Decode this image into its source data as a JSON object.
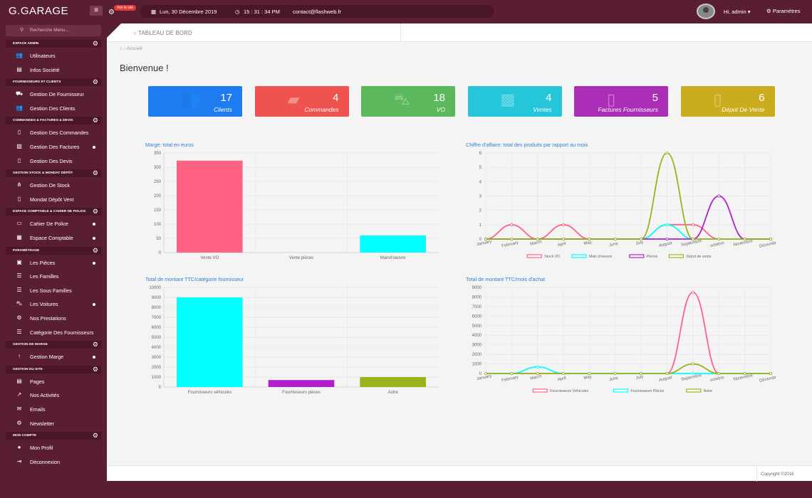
{
  "topbar": {
    "brand": "G.GARAGE",
    "menu_icon": "menu-icon",
    "site_badge": "Voir le site",
    "date": "Lun, 30 Décembre 2019",
    "time": "15 : 31 : 34 PM",
    "email": "contact@flashweb.fr",
    "user_greeting": "Hi, admin",
    "settings_label": "Paramètres"
  },
  "sidebar": {
    "search_placeholder": "Recherche Menu...",
    "sections": [
      {
        "title": "ESPACE ADMIN",
        "items": [
          {
            "label": "Utilisateurs",
            "icon": "users-icon"
          },
          {
            "label": "Infos Société",
            "icon": "building-icon"
          }
        ]
      },
      {
        "title": "FOURNISSEURS ET CLIENTS",
        "items": [
          {
            "label": "Gestion De Fournisseur",
            "icon": "truck-icon"
          },
          {
            "label": "Gestion Des Clients",
            "icon": "users-icon"
          }
        ]
      },
      {
        "title": "COMMANDES & FACTURES & DEVIS",
        "items": [
          {
            "label": "Gestion Des Commandes",
            "icon": "document-icon"
          },
          {
            "label": "Gestion Des Factures",
            "icon": "invoice-icon"
          },
          {
            "label": "Gestion Des Devis",
            "icon": "document-icon"
          }
        ]
      },
      {
        "title": "GESTION STOCK & MONDAT DÉPÔT",
        "items": [
          {
            "label": "Gestion De Stock",
            "icon": "share-icon"
          },
          {
            "label": "Mondat Dépôt Vent",
            "icon": "document-icon"
          }
        ]
      },
      {
        "title": "ESPACE COMPTABLE & CAHIER DE POLICE",
        "items": [
          {
            "label": "Cahier De Police",
            "icon": "book-icon"
          },
          {
            "label": "Espace Comptable",
            "icon": "calculator-icon"
          }
        ]
      },
      {
        "title": "PARAMÉTRAGE",
        "items": [
          {
            "label": "Les Pièces",
            "icon": "briefcase-icon"
          },
          {
            "label": "Les Familles",
            "icon": "list-icon"
          },
          {
            "label": "Les Sous Familles",
            "icon": "list-icon"
          },
          {
            "label": "Les Voitures",
            "icon": "car-icon"
          },
          {
            "label": "Nos Prestations",
            "icon": "gears-icon"
          },
          {
            "label": "Catégorie Des Fournisseurs",
            "icon": "list-icon"
          }
        ]
      },
      {
        "title": "GESTION DE MARGE",
        "items": [
          {
            "label": "Gestion Marge",
            "icon": "arrow-up-icon"
          }
        ]
      },
      {
        "title": "GESTION DU SITE",
        "items": [
          {
            "label": "Pages",
            "icon": "pages-icon"
          },
          {
            "label": "Nos Activités",
            "icon": "chart-line-icon"
          },
          {
            "label": "Emails",
            "icon": "mail-icon"
          },
          {
            "label": "Newsletter",
            "icon": "gear-icon"
          }
        ]
      },
      {
        "title": "MON COMPTE",
        "items": [
          {
            "label": "Mon Profil",
            "icon": "user-icon"
          },
          {
            "label": "Déconnexion",
            "icon": "logout-icon"
          }
        ]
      }
    ]
  },
  "header": {
    "title": "TABLEAU DE BORD"
  },
  "breadcrumb": {
    "current": "Accueil"
  },
  "welcome": "Bienvenue !",
  "stats": [
    {
      "value": "17",
      "label": "Clients",
      "color": "#1e7cf0",
      "icon": "users-icon"
    },
    {
      "value": "4",
      "label": "Commandes",
      "color": "#ef5350",
      "icon": "ticket-icon"
    },
    {
      "value": "18",
      "label": "VO",
      "color": "#5cb85c",
      "icon": "car-icon"
    },
    {
      "value": "4",
      "label": "Ventes",
      "color": "#26c6da",
      "icon": "cubes-icon"
    },
    {
      "value": "5",
      "label": "Factures Fournisseurs",
      "color": "#ab2fb6",
      "icon": "file-icon"
    },
    {
      "value": "6",
      "label": "Dépot De Vente",
      "color": "#c9ad1f",
      "icon": "file-icon"
    }
  ],
  "chart_data": [
    {
      "type": "bar",
      "title": "Marge: total en euros",
      "categories": [
        "Vente VO",
        "Vente pièces",
        "Maind'oeuvre"
      ],
      "values": [
        323,
        0,
        60
      ],
      "colors": [
        "#ff6384",
        "#ff6384",
        "#00ffff"
      ],
      "ylim": [
        0,
        350
      ],
      "yticks": [
        0,
        50,
        100,
        150,
        200,
        250,
        300,
        350
      ]
    },
    {
      "type": "line",
      "title": "Chiffre d'affaire: total des produits par rapport au mois",
      "categories": [
        "January",
        "February",
        "March",
        "April",
        "May",
        "June",
        "July",
        "August",
        "Septembre",
        "octobre",
        "Novembre",
        "Décembre"
      ],
      "ylim": [
        0,
        6
      ],
      "yticks": [
        0,
        1,
        2,
        3,
        4,
        5,
        6
      ],
      "series": [
        {
          "name": "Stock VO",
          "color": "#ff6384",
          "values": [
            0,
            1,
            0,
            1,
            0,
            0,
            0,
            1,
            1,
            0,
            0,
            0
          ]
        },
        {
          "name": "Main d'oeuvre",
          "color": "#00ffff",
          "values": [
            0,
            0,
            0,
            0,
            0,
            0,
            0,
            1,
            0,
            0,
            0,
            0
          ]
        },
        {
          "name": "Pièces",
          "color": "#b21fcc",
          "values": [
            0,
            0,
            0,
            0,
            0,
            0,
            0,
            0,
            0,
            3,
            0,
            0
          ]
        },
        {
          "name": "Dépot de vente",
          "color": "#99b31a",
          "values": [
            0,
            0,
            0,
            0,
            0,
            0,
            0,
            6,
            0,
            0,
            0,
            0
          ]
        }
      ]
    },
    {
      "type": "bar",
      "title": "Total de montant TTC/catégorie fournisseur",
      "categories": [
        "Fournisseurs véhicules",
        "Fournisseurs pièces",
        "Autre"
      ],
      "values": [
        9000,
        700,
        1000
      ],
      "colors": [
        "#00ffff",
        "#b21fcc",
        "#99b31a"
      ],
      "ylim": [
        0,
        10000
      ],
      "yticks": [
        0,
        1000,
        2000,
        3000,
        4000,
        5000,
        6000,
        7000,
        8000,
        9000,
        10000
      ]
    },
    {
      "type": "line",
      "title": "Total de montant TTC/mois d'achat",
      "categories": [
        "January",
        "February",
        "March",
        "April",
        "May",
        "June",
        "July",
        "August",
        "Septembre",
        "octobre",
        "Novembre",
        "Décembre"
      ],
      "ylim": [
        0,
        9000
      ],
      "yticks": [
        0,
        1000,
        2000,
        3000,
        4000,
        5000,
        6000,
        7000,
        8000,
        9000
      ],
      "series": [
        {
          "name": "Fournisseurs Véhicules",
          "color": "#ff6384",
          "values": [
            0,
            0,
            0,
            0,
            0,
            0,
            0,
            0,
            8500,
            0,
            0,
            0
          ]
        },
        {
          "name": "Fournisseurs Pièces",
          "color": "#00ffff",
          "values": [
            0,
            0,
            700,
            0,
            0,
            0,
            0,
            0,
            0,
            0,
            0,
            0
          ]
        },
        {
          "name": "Autre",
          "color": "#99b31a",
          "values": [
            0,
            0,
            0,
            0,
            0,
            0,
            0,
            0,
            1000,
            0,
            0,
            0
          ]
        }
      ]
    }
  ],
  "footer": {
    "copyright": "Copyright ©2016"
  }
}
